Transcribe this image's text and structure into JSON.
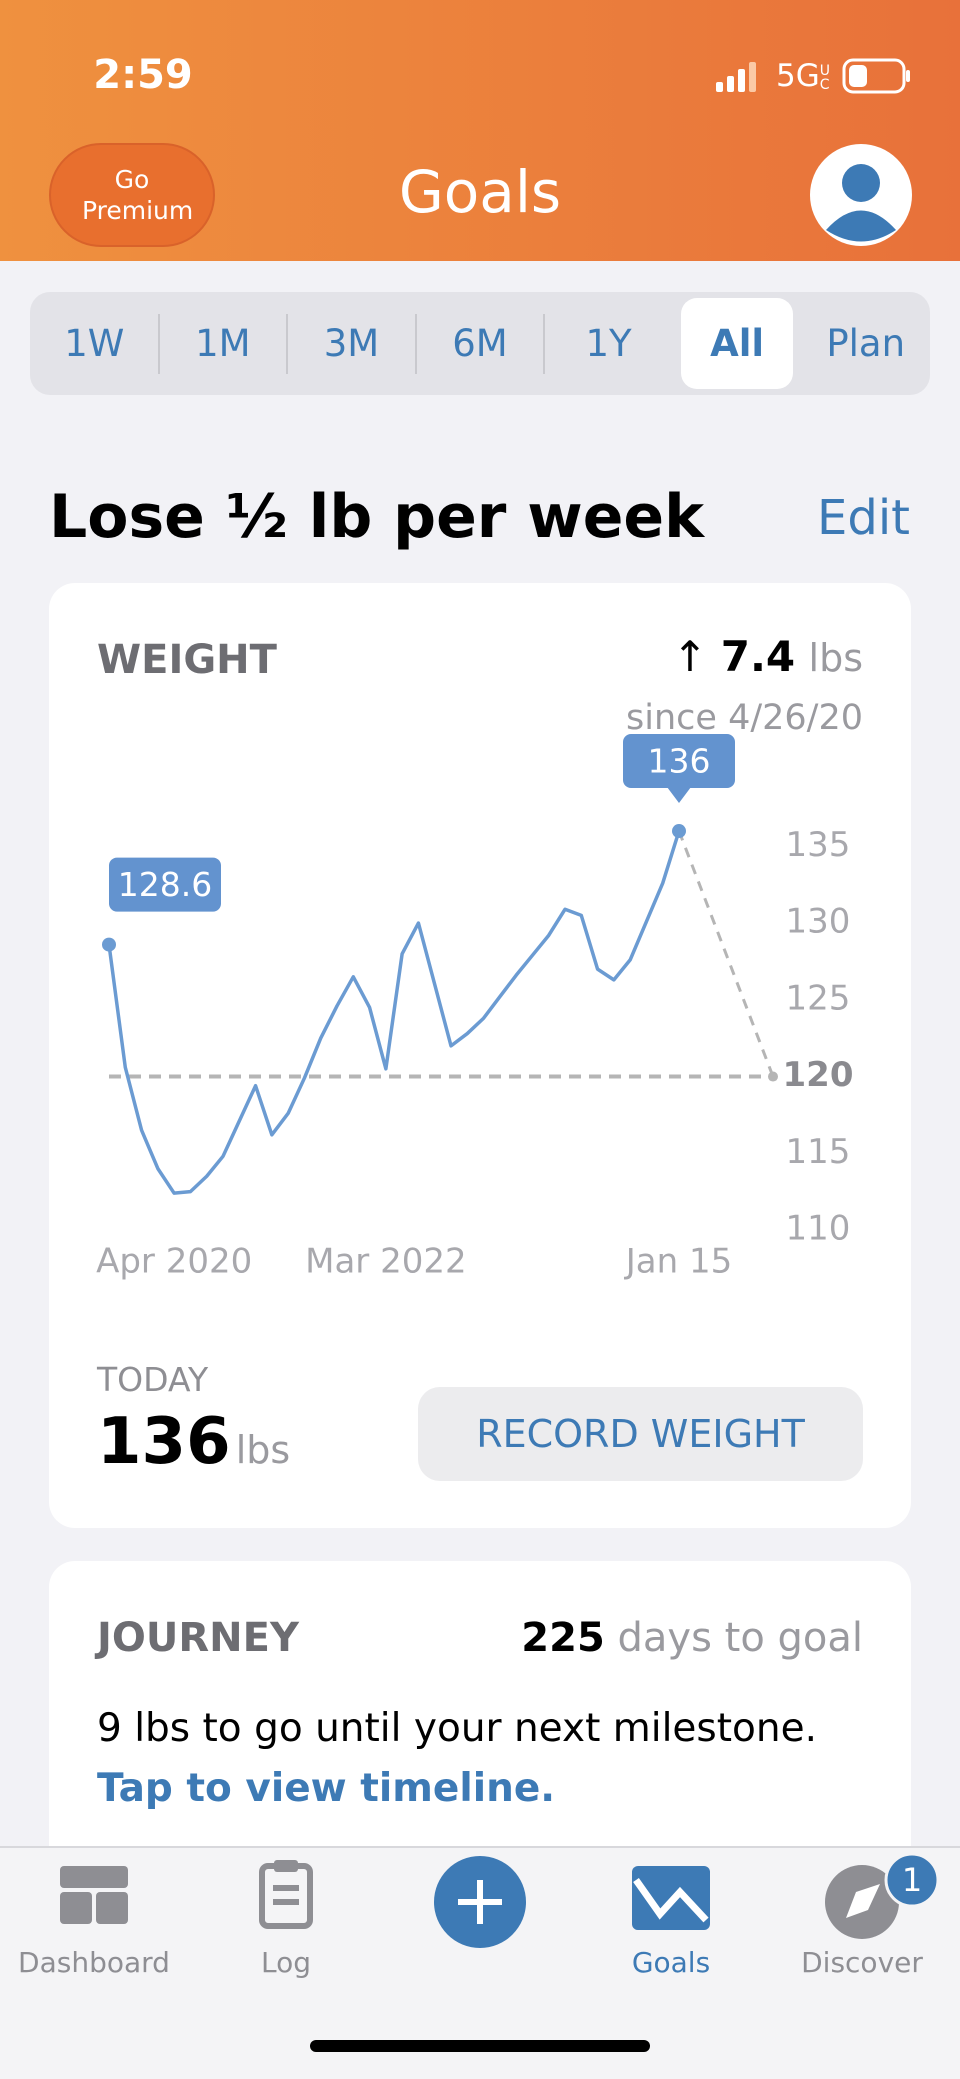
{
  "status_bar": {
    "time": "2:59",
    "network": "5G",
    "network_suffix": "UC"
  },
  "header": {
    "premium_button": "Go Premium",
    "title": "Goals"
  },
  "range_tabs": {
    "items": [
      "1W",
      "1M",
      "3M",
      "6M",
      "1Y",
      "All",
      "Plan"
    ],
    "selected": 5
  },
  "goal": {
    "title": "Lose ½ lb per week",
    "edit": "Edit"
  },
  "weight_card": {
    "heading": "WEIGHT",
    "change_arrow": "↑",
    "change": "7.4",
    "change_unit": "lbs",
    "since": "since 4/26/20",
    "today_label": "TODAY",
    "today_value": "136",
    "today_unit": "lbs",
    "button": "RECORD WEIGHT"
  },
  "chart_data": {
    "type": "line",
    "categories": [
      null,
      null,
      null,
      null,
      "Apr 2020",
      null,
      null,
      null,
      null,
      null,
      null,
      null,
      null,
      null,
      null,
      null,
      null,
      "Mar 2022",
      null,
      null,
      null,
      null,
      null,
      null,
      null,
      null,
      null,
      null,
      null,
      null,
      null,
      null,
      null,
      null,
      null,
      "Jan 15"
    ],
    "values": [
      128.6,
      120.6,
      116.5,
      114.0,
      112.4,
      112.5,
      113.5,
      114.8,
      117.1,
      119.4,
      116.2,
      117.6,
      119.9,
      122.5,
      124.6,
      126.5,
      124.5,
      120.5,
      128.0,
      130.0,
      126.0,
      122.0,
      122.8,
      123.8,
      125.2,
      126.6,
      127.9,
      129.2,
      130.9,
      130.5,
      127.0,
      126.3,
      127.6,
      130.1,
      132.6,
      136
    ],
    "color": "#6b9bd2",
    "goal": 120,
    "goal_color": "#b5b5b5",
    "ylim": [
      108.5,
      137.5
    ],
    "yticks": [
      110,
      115,
      120,
      125,
      130,
      135
    ]
  },
  "journey": {
    "heading": "JOURNEY",
    "days": "225",
    "days_text": "days to goal",
    "milestone": "9 lbs to go until your next milestone.",
    "link": "Tap to view timeline."
  },
  "tab_bar": {
    "items": [
      {
        "label": "Dashboard"
      },
      {
        "label": "Log"
      },
      {
        "label": null
      },
      {
        "label": "Goals"
      },
      {
        "label": "Discover"
      }
    ],
    "selected": 3,
    "badge": "1"
  }
}
